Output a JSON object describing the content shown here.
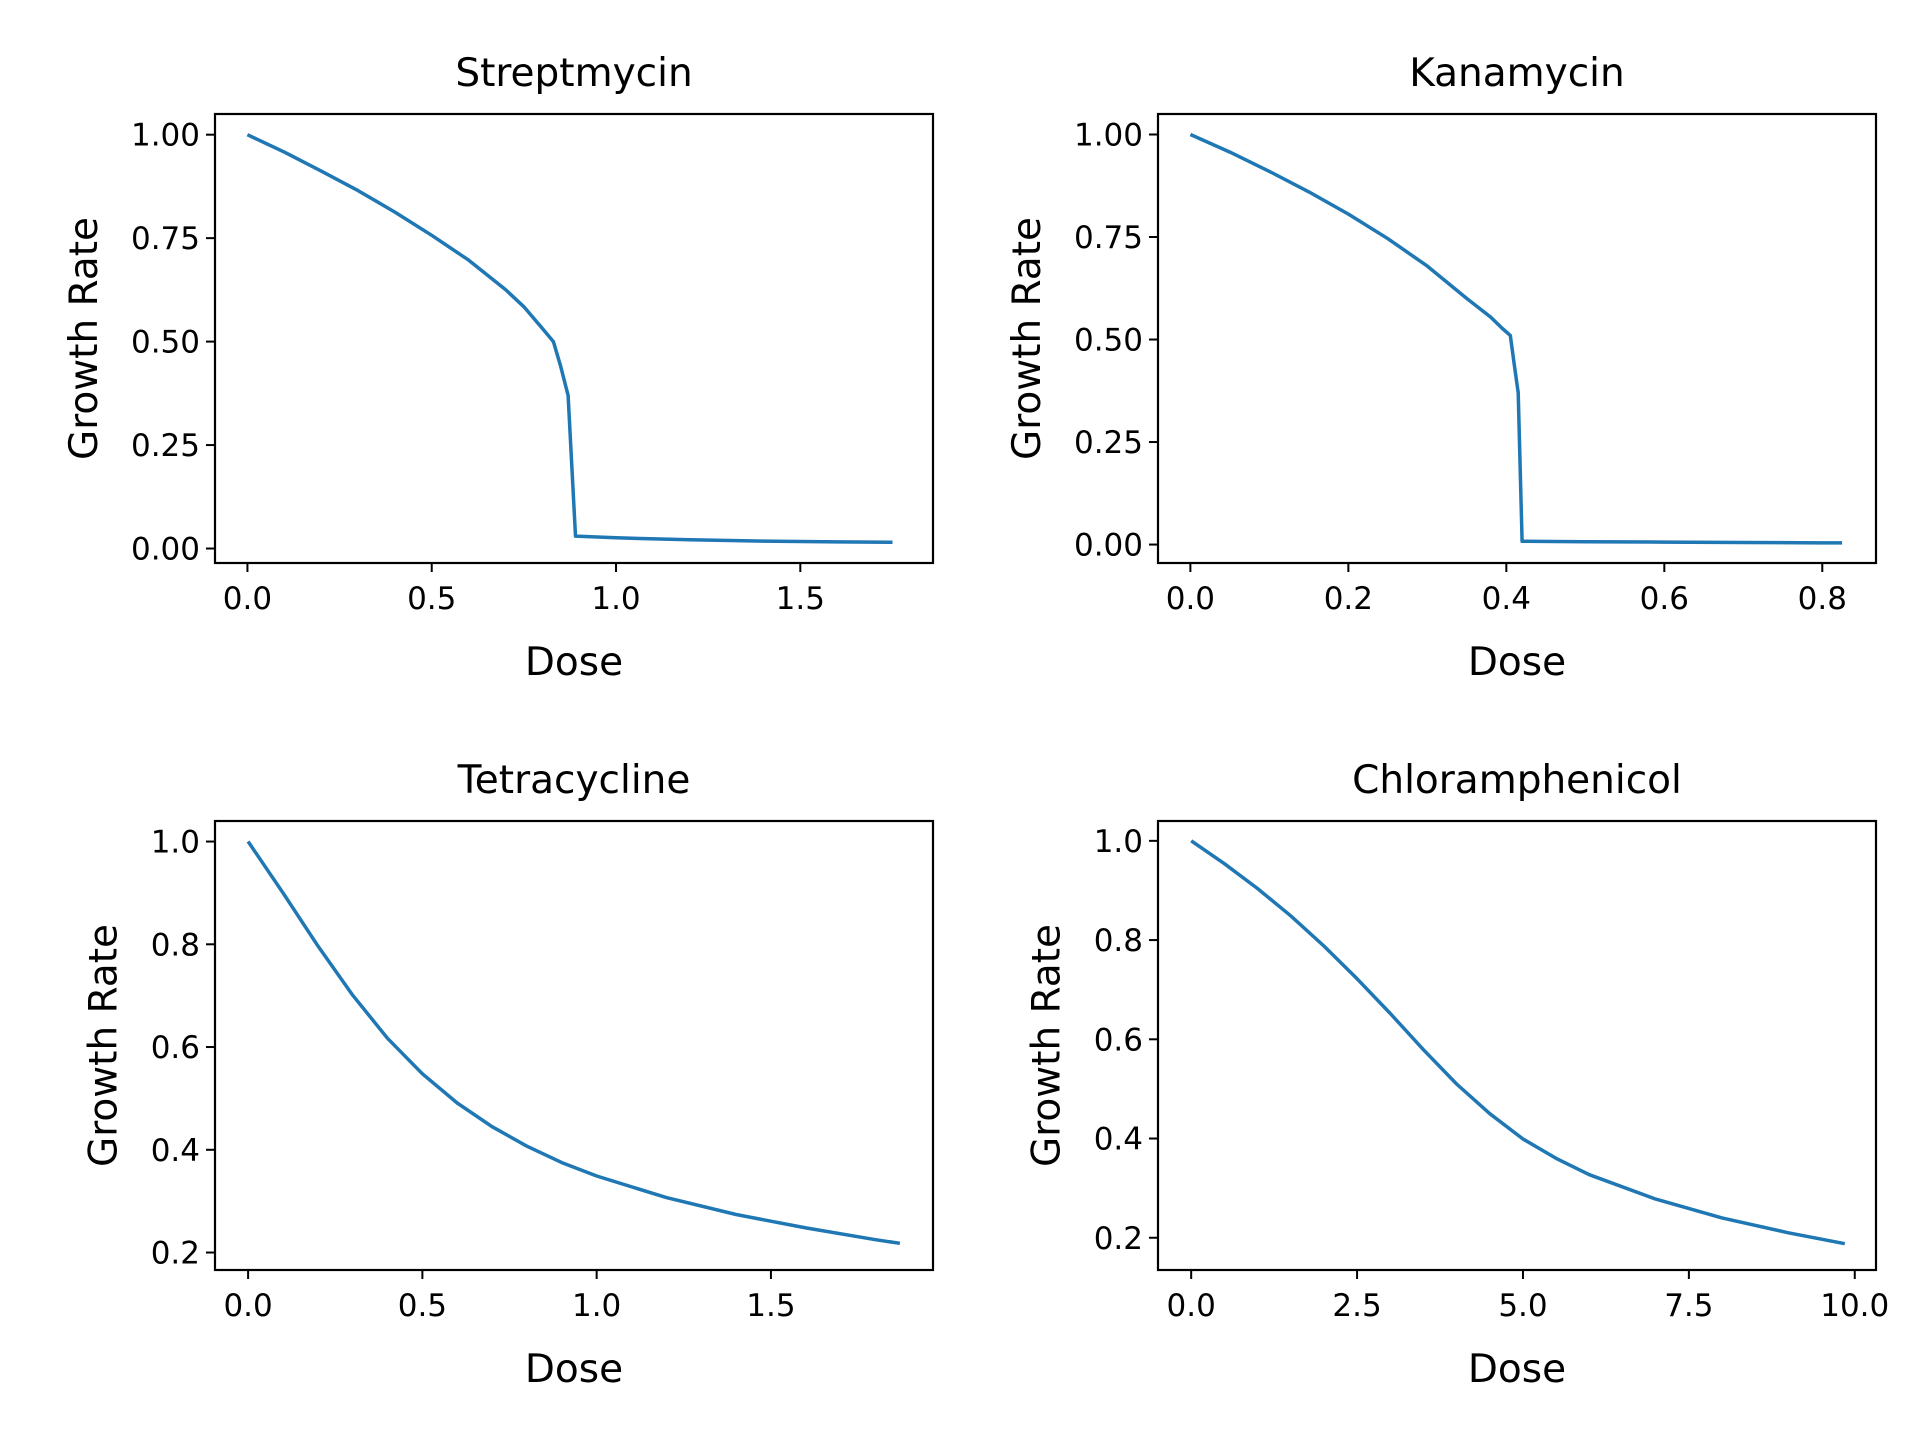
{
  "chart_data": [
    {
      "type": "line",
      "title": "Streptmycin",
      "xlabel": "Dose",
      "ylabel": "Growth Rate",
      "xlim": [
        -0.088,
        1.86
      ],
      "ylim": [
        -0.035,
        1.05
      ],
      "xticks": [
        0.0,
        0.5,
        1.0,
        1.5
      ],
      "xtick_labels": [
        "0.0",
        "0.5",
        "1.0",
        "1.5"
      ],
      "yticks": [
        0.0,
        0.25,
        0.5,
        0.75,
        1.0
      ],
      "ytick_labels": [
        "0.00",
        "0.25",
        "0.50",
        "0.75",
        "1.00"
      ],
      "grid": false,
      "series": [
        {
          "color": "#1f77b4",
          "x": [
            0.0,
            0.1,
            0.2,
            0.3,
            0.4,
            0.5,
            0.6,
            0.7,
            0.75,
            0.8,
            0.83,
            0.85,
            0.87,
            0.89,
            1.0,
            1.2,
            1.4,
            1.6,
            1.75
          ],
          "y": [
            1.0,
            0.958,
            0.912,
            0.865,
            0.813,
            0.757,
            0.697,
            0.626,
            0.584,
            0.532,
            0.5,
            0.44,
            0.37,
            0.03,
            0.026,
            0.021,
            0.018,
            0.016,
            0.015
          ]
        }
      ]
    },
    {
      "type": "line",
      "title": "Kanamycin",
      "xlabel": "Dose",
      "ylabel": "Growth Rate",
      "xlim": [
        -0.041,
        0.868
      ],
      "ylim": [
        -0.045,
        1.05
      ],
      "xticks": [
        0.0,
        0.2,
        0.4,
        0.6,
        0.8
      ],
      "xtick_labels": [
        "0.0",
        "0.2",
        "0.4",
        "0.6",
        "0.8"
      ],
      "yticks": [
        0.0,
        0.25,
        0.5,
        0.75,
        1.0
      ],
      "ytick_labels": [
        "0.00",
        "0.25",
        "0.50",
        "0.75",
        "1.00"
      ],
      "grid": false,
      "series": [
        {
          "color": "#1f77b4",
          "x": [
            0.0,
            0.05,
            0.1,
            0.15,
            0.2,
            0.25,
            0.3,
            0.35,
            0.38,
            0.395,
            0.405,
            0.41,
            0.415,
            0.42,
            0.5,
            0.6,
            0.7,
            0.8,
            0.825
          ],
          "y": [
            1.0,
            0.957,
            0.91,
            0.86,
            0.806,
            0.746,
            0.679,
            0.6,
            0.555,
            0.527,
            0.51,
            0.44,
            0.37,
            0.008,
            0.007,
            0.006,
            0.005,
            0.004,
            0.004
          ]
        }
      ]
    },
    {
      "type": "line",
      "title": "Tetracycline",
      "xlabel": "Dose",
      "ylabel": "Growth Rate",
      "xlim": [
        -0.095,
        1.965
      ],
      "ylim": [
        0.166,
        1.04
      ],
      "xticks": [
        0.0,
        0.5,
        1.0,
        1.5
      ],
      "xtick_labels": [
        "0.0",
        "0.5",
        "1.0",
        "1.5"
      ],
      "yticks": [
        0.2,
        0.4,
        0.6,
        0.8,
        1.0
      ],
      "ytick_labels": [
        "0.2",
        "0.4",
        "0.6",
        "0.8",
        "1.0"
      ],
      "grid": false,
      "series": [
        {
          "color": "#1f77b4",
          "x": [
            0.0,
            0.1,
            0.2,
            0.3,
            0.4,
            0.5,
            0.6,
            0.7,
            0.8,
            0.9,
            1.0,
            1.2,
            1.4,
            1.6,
            1.8,
            1.87
          ],
          "y": [
            1.0,
            0.9,
            0.797,
            0.701,
            0.617,
            0.548,
            0.491,
            0.445,
            0.407,
            0.375,
            0.349,
            0.307,
            0.274,
            0.248,
            0.225,
            0.218
          ]
        }
      ]
    },
    {
      "type": "line",
      "title": "Chloramphenicol",
      "xlabel": "Dose",
      "ylabel": "Growth Rate",
      "xlim": [
        -0.5,
        10.32
      ],
      "ylim": [
        0.135,
        1.04
      ],
      "xticks": [
        0.0,
        2.5,
        5.0,
        7.5,
        10.0
      ],
      "xtick_labels": [
        "0.0",
        "2.5",
        "5.0",
        "7.5",
        "10.0"
      ],
      "yticks": [
        0.2,
        0.4,
        0.6,
        0.8,
        1.0
      ],
      "ytick_labels": [
        "0.2",
        "0.4",
        "0.6",
        "0.8",
        "1.0"
      ],
      "grid": false,
      "series": [
        {
          "color": "#1f77b4",
          "x": [
            0.0,
            0.5,
            1.0,
            1.5,
            2.0,
            2.5,
            3.0,
            3.5,
            4.0,
            4.5,
            5.0,
            5.5,
            6.0,
            7.0,
            8.0,
            9.0,
            9.85
          ],
          "y": [
            1.0,
            0.954,
            0.904,
            0.849,
            0.788,
            0.722,
            0.652,
            0.579,
            0.51,
            0.45,
            0.399,
            0.36,
            0.327,
            0.278,
            0.24,
            0.21,
            0.188
          ]
        }
      ]
    }
  ]
}
